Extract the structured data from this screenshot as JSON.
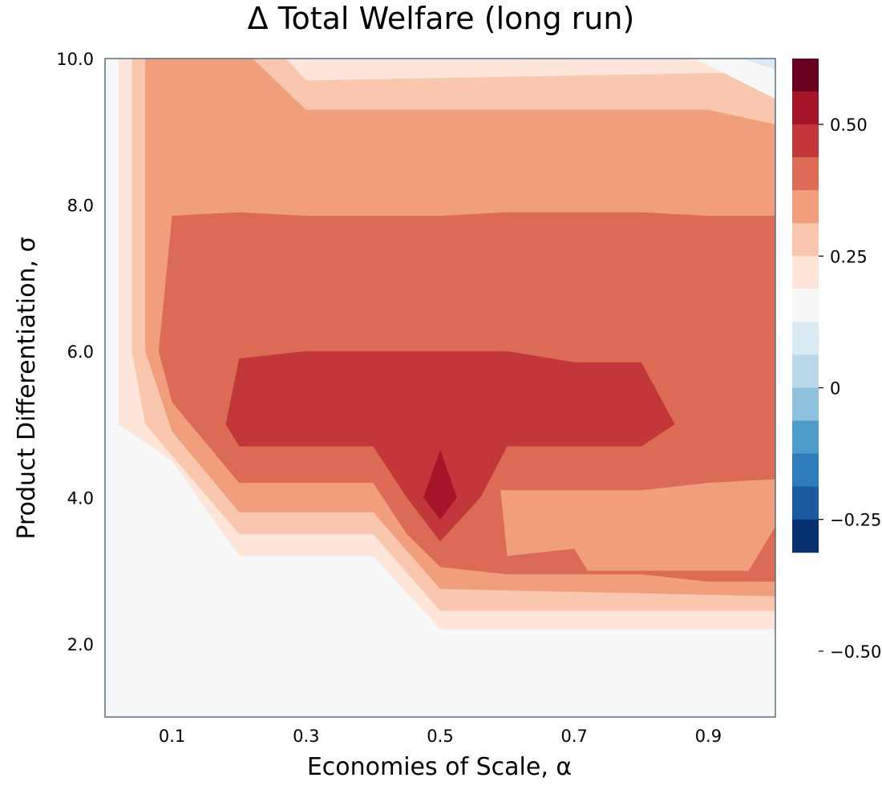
{
  "chart_data": {
    "type": "contour",
    "title": "Δ Total Welfare (long run)",
    "xlabel": "Economies of Scale, α",
    "ylabel": "Product Differentiation, σ",
    "xlim": [
      0.0,
      1.0
    ],
    "ylim": [
      1.0,
      10.0
    ],
    "x_ticks": [
      0.1,
      0.3,
      0.5,
      0.7,
      0.9
    ],
    "x_tick_labels": [
      "0.1",
      "0.3",
      "0.5",
      "0.7",
      "0.9"
    ],
    "y_ticks": [
      2.0,
      4.0,
      6.0,
      8.0,
      10.0
    ],
    "y_tick_labels": [
      "2.0",
      "4.0",
      "6.0",
      "8.0",
      "10.0"
    ],
    "grid": false,
    "colormap": "RdBu (reversed)",
    "colorbar": {
      "range": [
        -0.625,
        0.625
      ],
      "levels": [
        {
          "from": 0.5625,
          "to": 0.625,
          "color": "#67001f"
        },
        {
          "from": 0.5,
          "to": 0.5625,
          "color": "#a51429"
        },
        {
          "from": 0.4375,
          "to": 0.5,
          "color": "#c1373a"
        },
        {
          "from": 0.375,
          "to": 0.4375,
          "color": "#dc6b56"
        },
        {
          "from": 0.3125,
          "to": 0.375,
          "color": "#f09e7c"
        },
        {
          "from": 0.25,
          "to": 0.3125,
          "color": "#f9c7ae"
        },
        {
          "from": 0.1875,
          "to": 0.25,
          "color": "#fde5da"
        },
        {
          "from": 0.125,
          "to": 0.1875,
          "color": "#f7f7f7"
        },
        {
          "from": 0.0625,
          "to": 0.125,
          "color": "#dbe9f2"
        },
        {
          "from": 0.0,
          "to": 0.0625,
          "color": "#b9d8ea"
        },
        {
          "from": -0.0625,
          "to": 0.0,
          "color": "#8ec2de"
        },
        {
          "from": -0.125,
          "to": -0.0625,
          "color": "#4f9cca"
        },
        {
          "from": -0.1875,
          "to": -0.125,
          "color": "#2f7cbb"
        },
        {
          "from": -0.25,
          "to": -0.1875,
          "color": "#1a5a9f"
        },
        {
          "from": -0.3125,
          "to": -0.25,
          "color": "#073170"
        }
      ],
      "ticks": [
        0.5,
        0.25,
        0,
        -0.25,
        -0.5
      ],
      "tick_labels": [
        "0.50",
        "0.25",
        "0",
        "−0.25",
        "−0.50"
      ]
    },
    "regions": [
      {
        "level": "0",
        "color": "#f7f7f7",
        "outline": [
          [
            0.0,
            1.0
          ],
          [
            1.0,
            1.0
          ],
          [
            1.0,
            10.0
          ],
          [
            0.0,
            10.0
          ]
        ]
      },
      {
        "level": "(0, 0.125]",
        "color": "#fde5da",
        "outline": [
          [
            0.02,
            10.0
          ],
          [
            0.02,
            5.0
          ],
          [
            0.1,
            4.5
          ],
          [
            0.2,
            3.2
          ],
          [
            0.4,
            3.2
          ],
          [
            0.5,
            2.2
          ],
          [
            1.0,
            2.2
          ],
          [
            1.0,
            10.0
          ]
        ]
      },
      {
        "level": "(0.125, 0.25]",
        "color": "#f9c7ae",
        "outline": [
          [
            0.04,
            10.0
          ],
          [
            0.04,
            6.0
          ],
          [
            0.06,
            5.0
          ],
          [
            0.2,
            3.5
          ],
          [
            0.4,
            3.5
          ],
          [
            0.5,
            2.45
          ],
          [
            1.0,
            2.45
          ],
          [
            1.0,
            9.8
          ],
          [
            0.9,
            9.8
          ],
          [
            0.3,
            9.7
          ],
          [
            0.27,
            10.0
          ]
        ]
      },
      {
        "level": "(0.25, 0.375]",
        "color": "#f09e7c",
        "outline": [
          [
            0.06,
            10.0
          ],
          [
            0.06,
            6.0
          ],
          [
            0.1,
            4.9
          ],
          [
            0.2,
            3.8
          ],
          [
            0.4,
            3.8
          ],
          [
            0.5,
            2.75
          ],
          [
            1.0,
            2.65
          ],
          [
            1.0,
            9.1
          ],
          [
            0.9,
            9.3
          ],
          [
            0.3,
            9.3
          ],
          [
            0.22,
            10.0
          ]
        ]
      },
      {
        "level": "(0.375, 0.4375]",
        "color": "#dc6b56",
        "outline": [
          [
            0.1,
            7.85
          ],
          [
            0.2,
            7.9
          ],
          [
            0.3,
            7.85
          ],
          [
            0.5,
            7.85
          ],
          [
            0.6,
            7.9
          ],
          [
            0.8,
            7.9
          ],
          [
            0.9,
            7.85
          ],
          [
            1.0,
            7.85
          ],
          [
            1.0,
            2.85
          ],
          [
            0.9,
            2.85
          ],
          [
            0.8,
            2.95
          ],
          [
            0.7,
            2.95
          ],
          [
            0.6,
            2.95
          ],
          [
            0.5,
            3.05
          ],
          [
            0.45,
            3.5
          ],
          [
            0.4,
            4.2
          ],
          [
            0.2,
            4.2
          ],
          [
            0.1,
            5.3
          ],
          [
            0.08,
            6.0
          ]
        ]
      },
      {
        "level": "(0.25, 0.375] inset",
        "color": "#f09e7c",
        "outline": [
          [
            0.59,
            4.1
          ],
          [
            0.7,
            4.1
          ],
          [
            0.8,
            4.1
          ],
          [
            0.9,
            4.2
          ],
          [
            1.0,
            4.25
          ],
          [
            1.0,
            3.6
          ],
          [
            0.96,
            3.0
          ],
          [
            1.0,
            3.0
          ],
          [
            0.8,
            3.0
          ],
          [
            0.72,
            3.0
          ],
          [
            0.7,
            3.3
          ],
          [
            0.6,
            3.2
          ]
        ]
      },
      {
        "level": "(0.4375, 0.5]",
        "color": "#c1373a",
        "outline": [
          [
            0.2,
            5.9
          ],
          [
            0.3,
            6.0
          ],
          [
            0.4,
            6.0
          ],
          [
            0.5,
            6.0
          ],
          [
            0.6,
            6.0
          ],
          [
            0.7,
            5.85
          ],
          [
            0.8,
            5.85
          ],
          [
            0.85,
            5.0
          ],
          [
            0.8,
            4.7
          ],
          [
            0.6,
            4.7
          ],
          [
            0.56,
            4.0
          ],
          [
            0.5,
            3.4
          ],
          [
            0.45,
            4.0
          ],
          [
            0.4,
            4.7
          ],
          [
            0.2,
            4.7
          ],
          [
            0.18,
            5.0
          ]
        ]
      },
      {
        "level": "(0.5, 0.5625]",
        "color": "#a51429",
        "outline": [
          [
            0.5,
            4.65
          ],
          [
            0.525,
            4.0
          ],
          [
            0.5,
            3.7
          ],
          [
            0.475,
            4.0
          ]
        ]
      },
      {
        "level": "(0.125, 0.1875] corner",
        "color": "#f7f7f7",
        "outline": [
          [
            0.88,
            10.0
          ],
          [
            1.0,
            10.0
          ],
          [
            1.0,
            9.45
          ]
        ]
      },
      {
        "level": "(0.0625, 0.125] corner",
        "color": "#dbe9f2",
        "outline": [
          [
            0.95,
            10.0
          ],
          [
            1.0,
            10.0
          ],
          [
            1.0,
            9.85
          ]
        ]
      }
    ]
  }
}
